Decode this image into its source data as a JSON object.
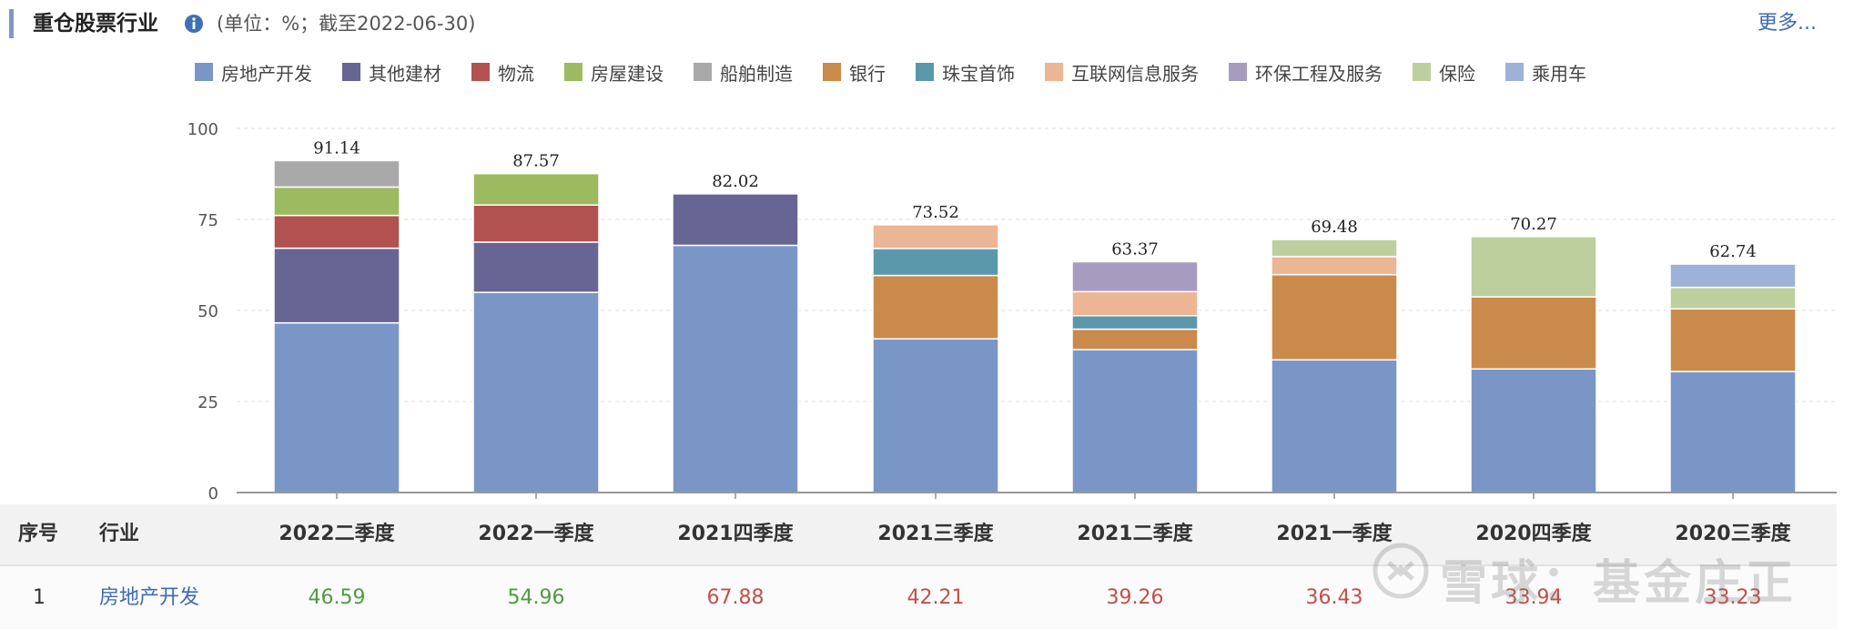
{
  "header": {
    "title": "重仓股票行业",
    "unit": "(单位：%；截至2022-06-30)",
    "more_label": "更多..."
  },
  "legend": [
    {
      "label": "房地产开发",
      "color": "#7a96c6"
    },
    {
      "label": "其他建材",
      "color": "#676594"
    },
    {
      "label": "物流",
      "color": "#b15150"
    },
    {
      "label": "房屋建设",
      "color": "#9cba5f"
    },
    {
      "label": "船舶制造",
      "color": "#a9a9a9"
    },
    {
      "label": "银行",
      "color": "#ca8a4b"
    },
    {
      "label": "珠宝首饰",
      "color": "#5b97ab"
    },
    {
      "label": "互联网信息服务",
      "color": "#ecb593"
    },
    {
      "label": "环保工程及服务",
      "color": "#a69cc0"
    },
    {
      "label": "保险",
      "color": "#bdcf9c"
    },
    {
      "label": "乘用车",
      "color": "#9db1d9"
    }
  ],
  "chart_data": {
    "type": "bar",
    "stacked": true,
    "categories": [
      "2022二季度",
      "2022一季度",
      "2021四季度",
      "2021三季度",
      "2021二季度",
      "2021一季度",
      "2020四季度",
      "2020三季度"
    ],
    "totals": [
      "91.14",
      "87.57",
      "82.02",
      "73.52",
      "63.37",
      "69.48",
      "70.27",
      "62.74"
    ],
    "yticks": [
      "0",
      "25",
      "50",
      "75",
      "100"
    ],
    "ylim": [
      0,
      100
    ],
    "series": [
      {
        "name": "房地产开发",
        "values": [
          46.59,
          54.96,
          67.88,
          42.21,
          39.26,
          36.43,
          33.94,
          33.23
        ]
      },
      {
        "name": "其他建材",
        "values": [
          20.5,
          13.8,
          14.14,
          0,
          0,
          0,
          0,
          0
        ]
      },
      {
        "name": "物流",
        "values": [
          9.0,
          10.2,
          0,
          0,
          0,
          0,
          0,
          0
        ]
      },
      {
        "name": "房屋建设",
        "values": [
          7.8,
          8.61,
          0,
          0,
          0,
          0,
          0,
          0
        ]
      },
      {
        "name": "船舶制造",
        "values": [
          7.25,
          0,
          0,
          0,
          0,
          0,
          0,
          0
        ]
      },
      {
        "name": "银行",
        "values": [
          0,
          0,
          0,
          17.4,
          5.6,
          23.4,
          19.8,
          17.2
        ]
      },
      {
        "name": "珠宝首饰",
        "values": [
          0,
          0,
          0,
          7.4,
          3.7,
          0,
          0,
          0
        ]
      },
      {
        "name": "互联网信息服务",
        "values": [
          0,
          0,
          0,
          6.51,
          6.61,
          4.95,
          0,
          0
        ]
      },
      {
        "name": "环保工程及服务",
        "values": [
          0,
          0,
          0,
          0,
          8.2,
          0,
          0,
          0
        ]
      },
      {
        "name": "保险",
        "values": [
          0,
          0,
          0,
          0,
          0,
          4.7,
          16.53,
          5.91
        ]
      },
      {
        "name": "乘用车",
        "values": [
          0,
          0,
          0,
          0,
          0,
          0,
          0,
          6.4
        ]
      }
    ]
  },
  "table": {
    "headers": {
      "index": "序号",
      "industry": "行业"
    },
    "columns": [
      "2022二季度",
      "2022一季度",
      "2021四季度",
      "2021三季度",
      "2021二季度",
      "2021一季度",
      "2020四季度",
      "2020三季度"
    ],
    "row": {
      "index": "1",
      "industry": "房地产开发",
      "values": [
        "46.59",
        "54.96",
        "67.88",
        "42.21",
        "39.26",
        "36.43",
        "33.94",
        "33.23"
      ],
      "colors": [
        "#4f9a41",
        "#4f9a41",
        "#c0504d",
        "#c0504d",
        "#c0504d",
        "#c0504d",
        "#c0504d",
        "#c0504d"
      ]
    }
  },
  "watermark": "雪球：基金庄正"
}
